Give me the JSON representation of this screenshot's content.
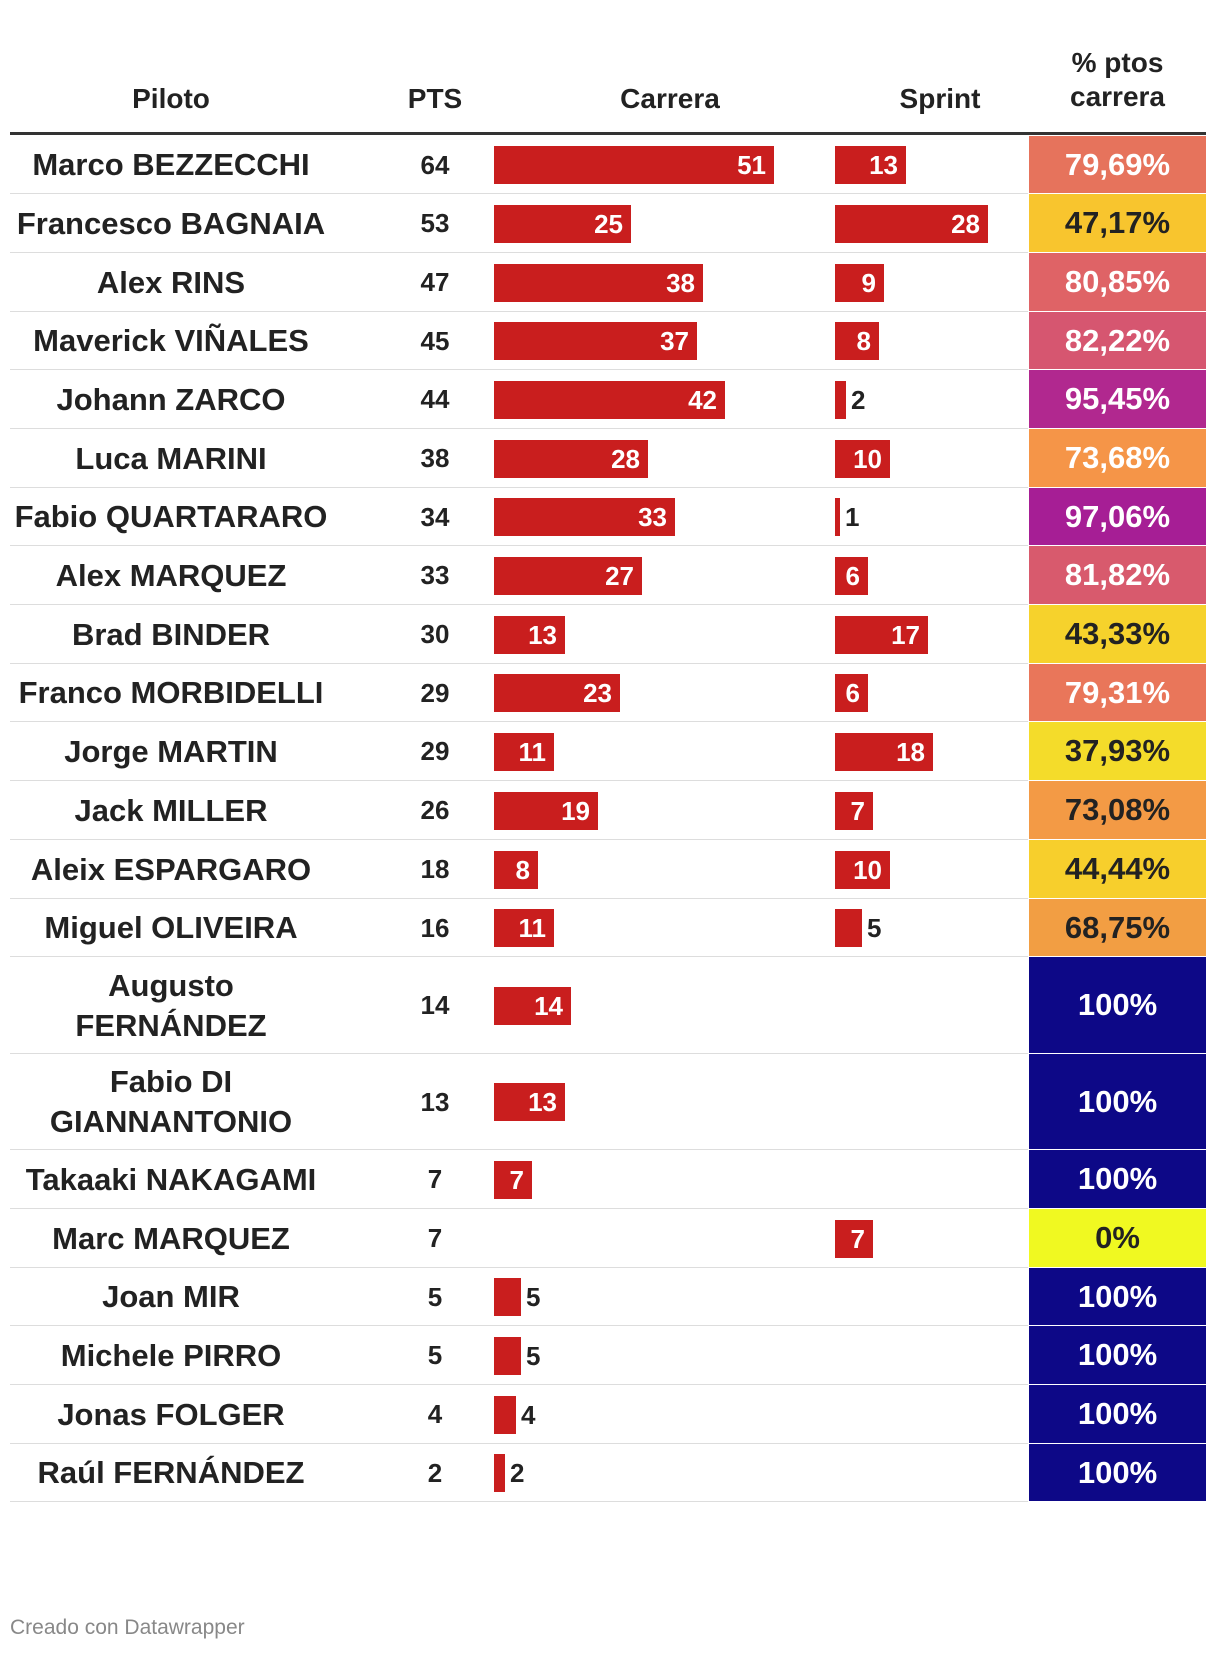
{
  "chart_data": {
    "type": "table",
    "columns": [
      "Piloto",
      "PTS",
      "Carrera",
      "Sprint",
      "% ptos\ncarrera"
    ],
    "rows": [
      {
        "piloto": "Marco BEZZECCHI",
        "pts": "64",
        "carrera": 51,
        "sprint": 13,
        "pct": "79,69%",
        "pct_color": "#e6735c",
        "pct_text_color": "#ffffff"
      },
      {
        "piloto": "Francesco BAGNAIA",
        "pts": "53",
        "carrera": 25,
        "sprint": 28,
        "pct": "47,17%",
        "pct_color": "#f8c52e",
        "pct_text_color": "#222222"
      },
      {
        "piloto": "Alex RINS",
        "pts": "47",
        "carrera": 38,
        "sprint": 9,
        "pct": "80,85%",
        "pct_color": "#df6366",
        "pct_text_color": "#ffffff"
      },
      {
        "piloto": "Maverick VIÑALES",
        "pts": "45",
        "carrera": 37,
        "sprint": 8,
        "pct": "82,22%",
        "pct_color": "#d65670",
        "pct_text_color": "#ffffff"
      },
      {
        "piloto": "Johann ZARCO",
        "pts": "44",
        "carrera": 42,
        "sprint": 2,
        "pct": "95,45%",
        "pct_color": "#b1288f",
        "pct_text_color": "#ffffff"
      },
      {
        "piloto": "Luca MARINI",
        "pts": "38",
        "carrera": 28,
        "sprint": 10,
        "pct": "73,68%",
        "pct_color": "#f59548",
        "pct_text_color": "#ffffff"
      },
      {
        "piloto": "Fabio QUARTARARO",
        "pts": "34",
        "carrera": 33,
        "sprint": 1,
        "pct": "97,06%",
        "pct_color": "#a61e95",
        "pct_text_color": "#ffffff"
      },
      {
        "piloto": "Alex MARQUEZ",
        "pts": "33",
        "carrera": 27,
        "sprint": 6,
        "pct": "81,82%",
        "pct_color": "#d85a6d",
        "pct_text_color": "#ffffff"
      },
      {
        "piloto": "Brad BINDER",
        "pts": "30",
        "carrera": 13,
        "sprint": 17,
        "pct": "43,33%",
        "pct_color": "#f6d22c",
        "pct_text_color": "#222222"
      },
      {
        "piloto": "Franco MORBIDELLI",
        "pts": "29",
        "carrera": 23,
        "sprint": 6,
        "pct": "79,31%",
        "pct_color": "#e9765a",
        "pct_text_color": "#ffffff"
      },
      {
        "piloto": "Jorge MARTIN",
        "pts": "29",
        "carrera": 11,
        "sprint": 18,
        "pct": "37,93%",
        "pct_color": "#f4dc2a",
        "pct_text_color": "#222222"
      },
      {
        "piloto": "Jack MILLER",
        "pts": "26",
        "carrera": 19,
        "sprint": 7,
        "pct": "73,08%",
        "pct_color": "#f39a45",
        "pct_text_color": "#222222"
      },
      {
        "piloto": "Aleix ESPARGARO",
        "pts": "18",
        "carrera": 8,
        "sprint": 10,
        "pct": "44,44%",
        "pct_color": "#f7cf2c",
        "pct_text_color": "#222222"
      },
      {
        "piloto": "Miguel OLIVEIRA",
        "pts": "16",
        "carrera": 11,
        "sprint": 5,
        "pct": "68,75%",
        "pct_color": "#f29e43",
        "pct_text_color": "#222222"
      },
      {
        "piloto": "Augusto FERNÁNDEZ",
        "pts": "14",
        "carrera": 14,
        "sprint": null,
        "pct": "100%",
        "pct_color": "#0d0887",
        "pct_text_color": "#ffffff"
      },
      {
        "piloto": "Fabio DI GIANNANTONIO",
        "pts": "13",
        "carrera": 13,
        "sprint": null,
        "pct": "100%",
        "pct_color": "#0d0887",
        "pct_text_color": "#ffffff"
      },
      {
        "piloto": "Takaaki NAKAGAMI",
        "pts": "7",
        "carrera": 7,
        "sprint": null,
        "pct": "100%",
        "pct_color": "#0d0887",
        "pct_text_color": "#ffffff"
      },
      {
        "piloto": "Marc MARQUEZ",
        "pts": "7",
        "carrera": null,
        "sprint": 7,
        "pct": "0%",
        "pct_color": "#f0f921",
        "pct_text_color": "#222222"
      },
      {
        "piloto": "Joan MIR",
        "pts": "5",
        "carrera": 5,
        "sprint": null,
        "pct": "100%",
        "pct_color": "#0d0887",
        "pct_text_color": "#ffffff"
      },
      {
        "piloto": "Michele PIRRO",
        "pts": "5",
        "carrera": 5,
        "sprint": null,
        "pct": "100%",
        "pct_color": "#0d0887",
        "pct_text_color": "#ffffff"
      },
      {
        "piloto": "Jonas FOLGER",
        "pts": "4",
        "carrera": 4,
        "sprint": null,
        "pct": "100%",
        "pct_color": "#0d0887",
        "pct_text_color": "#ffffff"
      },
      {
        "piloto": "Raúl FERNÁNDEZ",
        "pts": "2",
        "carrera": 2,
        "sprint": null,
        "pct": "100%",
        "pct_color": "#0d0887",
        "pct_text_color": "#ffffff"
      }
    ],
    "bar_color": "#c91e1e",
    "bar_max": 51
  },
  "footer": "Creado con Datawrapper"
}
